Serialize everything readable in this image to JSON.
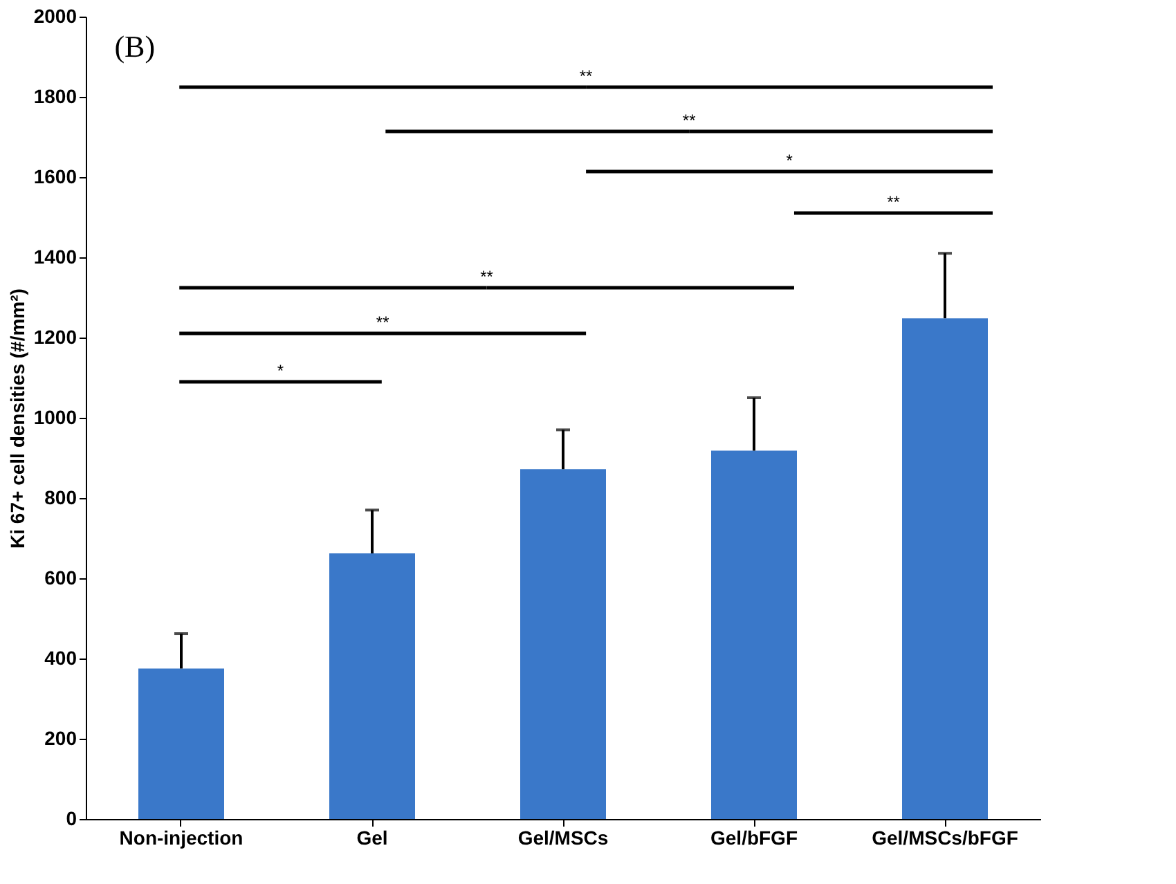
{
  "chart_data": {
    "type": "bar",
    "ylabel": "Ki 67+ cell densities (#/mm²)",
    "categories": [
      "Non-injection",
      "Gel",
      "Gel/MSCs",
      "Gel/bFGF",
      "Gel/MSCs/bFGF"
    ],
    "values": [
      375,
      662,
      872,
      918,
      1248
    ],
    "errors": [
      [
        375,
        462
      ],
      [
        662,
        770
      ],
      [
        872,
        970
      ],
      [
        918,
        1050
      ],
      [
        1248,
        1410
      ]
    ],
    "color": "#3a78c9",
    "ylim": [
      0,
      2000
    ],
    "yticks": [
      0,
      200,
      400,
      600,
      800,
      1000,
      1200,
      1400,
      1600,
      1800,
      2000
    ],
    "grid": false,
    "annotations": [
      "(B)",
      "**",
      "**",
      "*",
      "**",
      "**",
      "**",
      "*"
    ]
  }
}
